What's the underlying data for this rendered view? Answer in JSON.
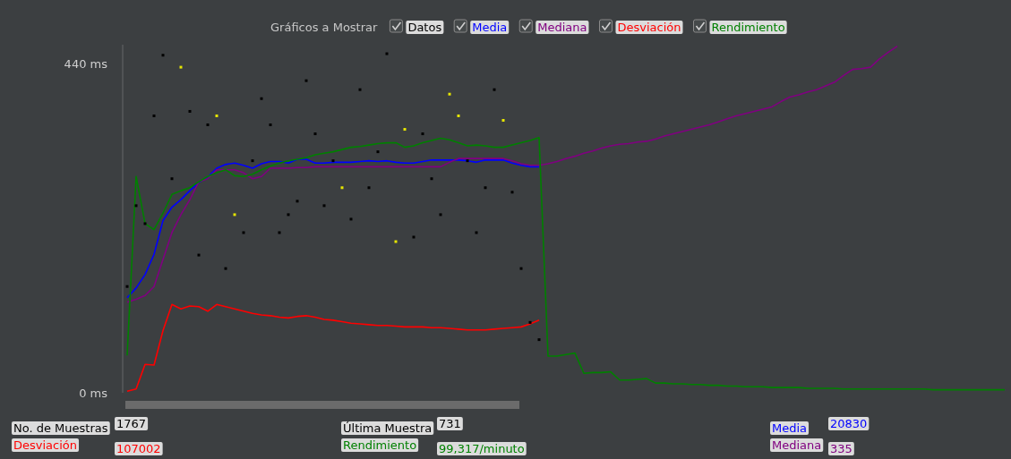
{
  "chart_data": {
    "type": "line",
    "legend_title": "Gráficos a Mostrar",
    "legend": "top",
    "categories": [
      null,
      null,
      null,
      null,
      null,
      null,
      null,
      null,
      null,
      null,
      null,
      null,
      null,
      null,
      null,
      null,
      null,
      null,
      null,
      null,
      null,
      null,
      null,
      null,
      null,
      null,
      null,
      null,
      null,
      null,
      null,
      null,
      null,
      null,
      null,
      null,
      null,
      null,
      null,
      null,
      null,
      null,
      null,
      null,
      null,
      null,
      null,
      null,
      null,
      null,
      null,
      null,
      null,
      null,
      null,
      null,
      null,
      null,
      null,
      null,
      null,
      null,
      null,
      null,
      null,
      null,
      null,
      null,
      null,
      null,
      null,
      null,
      null,
      null,
      null,
      null,
      null,
      null,
      null,
      null,
      null,
      null,
      null,
      null,
      null,
      null,
      null,
      null,
      null,
      null,
      null,
      null,
      null,
      null,
      null,
      null,
      null,
      null,
      null
    ],
    "ylim": [
      0,
      465
    ],
    "yticks": [
      {
        "value": 0,
        "label": "0 ms"
      },
      {
        "value": 440,
        "label": "440 ms"
      }
    ],
    "tick_labels": "y",
    "grid": false,
    "series": [
      {
        "name": "Datos",
        "type": "scatter",
        "marker": "square",
        "color": "#000000",
        "values": [
          142,
          250,
          226,
          370,
          451,
          286,
          435,
          376,
          184,
          358,
          370,
          166,
          238,
          214,
          310,
          393,
          358,
          214,
          238,
          256,
          417,
          346,
          250,
          310,
          274,
          232,
          405,
          274,
          322,
          453,
          202,
          352,
          208,
          346,
          286,
          238,
          399,
          370,
          310,
          214,
          274,
          405,
          364,
          268,
          166,
          94,
          71,
          null,
          null,
          null,
          null,
          null,
          null,
          null,
          null,
          null,
          null,
          null,
          null,
          null,
          null,
          null,
          null,
          null,
          null,
          null,
          null,
          null,
          null,
          null,
          null,
          null,
          null,
          null,
          null,
          null,
          null,
          null,
          null,
          null,
          null,
          null,
          null,
          null,
          null,
          null,
          null,
          null,
          null,
          null,
          null,
          null,
          null,
          null,
          null,
          null,
          null,
          null,
          null
        ],
        "colors": [
          "#000000",
          "#000000",
          "#000000",
          "#000000",
          "#000000",
          "#000000",
          "#e6e600",
          "#000000",
          "#000000",
          "#000000",
          "#e6e600",
          "#000000",
          "#e6e600",
          "#000000",
          "#000000",
          "#000000",
          "#000000",
          "#000000",
          "#000000",
          "#000000",
          "#000000",
          "#000000",
          "#000000",
          "#000000",
          "#e6e600",
          "#000000",
          "#000000",
          "#000000",
          "#000000",
          "#000000",
          "#e6e600",
          "#e6e600",
          "#000000",
          "#000000",
          "#000000",
          "#000000",
          "#e6e600",
          "#e6e600",
          "#000000",
          "#000000",
          "#000000",
          "#000000",
          "#e6e600",
          "#000000",
          "#000000",
          "#000000",
          "#000000",
          null,
          null,
          null,
          null,
          null,
          null,
          null,
          null,
          null,
          null,
          null,
          null,
          null,
          null,
          null,
          null,
          null,
          null,
          null,
          null,
          null,
          null,
          null,
          null,
          null,
          null,
          null,
          null,
          null,
          null,
          null,
          null,
          null,
          null,
          null,
          null,
          null,
          null,
          null,
          null,
          null,
          null,
          null,
          null,
          null,
          null,
          null,
          null,
          null,
          null,
          null,
          null
        ]
      },
      {
        "name": "Media",
        "color": "#0000ff",
        "values": [
          127,
          140,
          158,
          185,
          230,
          248,
          258,
          270,
          281,
          288,
          300,
          305,
          307,
          304,
          300,
          306,
          309,
          309,
          307,
          312,
          312,
          307,
          307,
          308,
          308,
          308,
          309,
          310,
          309,
          310,
          308,
          307,
          307,
          309,
          311,
          311,
          311,
          311,
          310,
          308,
          311,
          311,
          311,
          307,
          304,
          302,
          302,
          null,
          null,
          null,
          null,
          null,
          null,
          null,
          null,
          null,
          null,
          null,
          null,
          null,
          null,
          null,
          null,
          null,
          null,
          null,
          null,
          null,
          null,
          null,
          null,
          null,
          null,
          null,
          null,
          null,
          null,
          null,
          null,
          null,
          null,
          null,
          null,
          null,
          null,
          null,
          null,
          null,
          null,
          null,
          null,
          null,
          null,
          null,
          null,
          null,
          null,
          null,
          null
        ]
      },
      {
        "name": "Mediana",
        "color": "#800080",
        "values": [
          121,
          125,
          130,
          142,
          178,
          214,
          238,
          258,
          282,
          286,
          298,
          298,
          298,
          294,
          286,
          289,
          300,
          300,
          300,
          301,
          301,
          302,
          302,
          302,
          302,
          302,
          302,
          302,
          302,
          302,
          302,
          302,
          302,
          302,
          302,
          302,
          308,
          313,
          313,
          313,
          313,
          313,
          313,
          310,
          306,
          304,
          304,
          306,
          309,
          313,
          316,
          320,
          323,
          327,
          330,
          332,
          333,
          335,
          336,
          339,
          343,
          346,
          349,
          352,
          355,
          358,
          362,
          366,
          370,
          373,
          376,
          379,
          382,
          389,
          395,
          398,
          402,
          405,
          410,
          415,
          424,
          432,
          433,
          435,
          446,
          455,
          463,
          null,
          null,
          null,
          null,
          null,
          null,
          null,
          null,
          null,
          null,
          null,
          null
        ]
      },
      {
        "name": "Desviación",
        "color": "#ff0000",
        "values": [
          2,
          5,
          38,
          37,
          83,
          118,
          112,
          116,
          115,
          109,
          118,
          115,
          112,
          109,
          106,
          104,
          103,
          101,
          100,
          102,
          103,
          101,
          98,
          97,
          95,
          93,
          92,
          91,
          90,
          90,
          89,
          88,
          88,
          88,
          87,
          87,
          86,
          85,
          84,
          84,
          84,
          85,
          86,
          87,
          88,
          92,
          97,
          null,
          null,
          null,
          null,
          null,
          null,
          null,
          null,
          null,
          null,
          null,
          null,
          null,
          null,
          null,
          null,
          null,
          null,
          null,
          null,
          null,
          null,
          null,
          null,
          null,
          null,
          null,
          null,
          null,
          null,
          null,
          null,
          null,
          null,
          null,
          null,
          null,
          null,
          null,
          null,
          null,
          null,
          null,
          null,
          null,
          null,
          null,
          null,
          null,
          null,
          null,
          null
        ]
      },
      {
        "name": "Rendimiento",
        "color": "#008000",
        "values": [
          50,
          289,
          226,
          218,
          240,
          265,
          270,
          274,
          282,
          289,
          294,
          298,
          290,
          289,
          292,
          298,
          303,
          307,
          310,
          312,
          314,
          318,
          320,
          322,
          325,
          328,
          329,
          331,
          333,
          334,
          334,
          328,
          330,
          334,
          337,
          340,
          338,
          334,
          330,
          331,
          330,
          328,
          328,
          331,
          334,
          337,
          341,
          49,
          49,
          51,
          53,
          26,
          27,
          27,
          28,
          17,
          17,
          18,
          19,
          13,
          13,
          12,
          12,
          11,
          11,
          10,
          10,
          9,
          9,
          8,
          8,
          8,
          7,
          7,
          7,
          7,
          6,
          6,
          6,
          6,
          5,
          5,
          5,
          5,
          5,
          5,
          5,
          5,
          5,
          5,
          4,
          4,
          4,
          4,
          4,
          4,
          4,
          4,
          4
        ]
      }
    ],
    "annotations": [
      "No. de Muestras",
      "1767",
      "Última Muestra",
      "731",
      "Media",
      "20830",
      "Desviación",
      "107002",
      "Rendimiento",
      "99,317/minuto",
      "Mediana",
      "335"
    ]
  }
}
